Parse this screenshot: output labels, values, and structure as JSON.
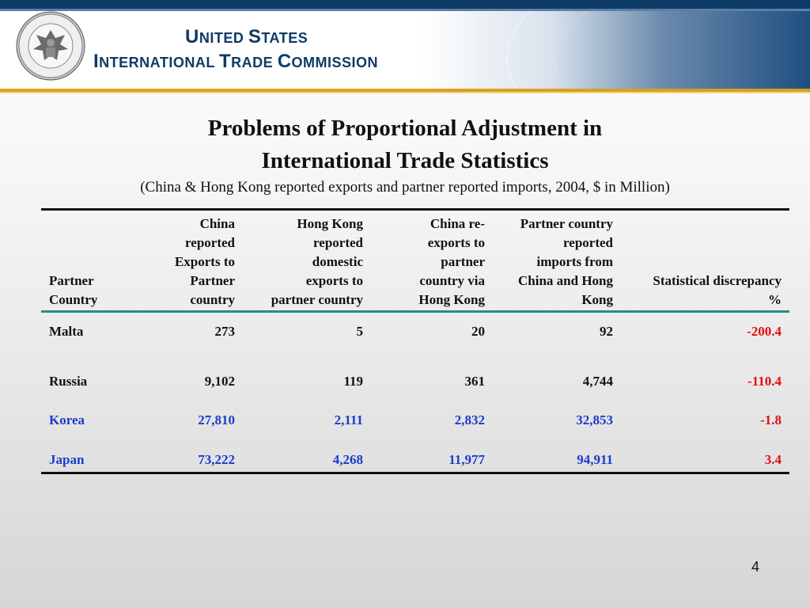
{
  "header": {
    "org_line1_prefix": "U",
    "org_line1_rest": "NITED ",
    "org_line1_prefix2": "S",
    "org_line1_rest2": "TATES",
    "org_line2_a": "I",
    "org_line2_b": "NTERNATIONAL ",
    "org_line2_c": "T",
    "org_line2_d": "RADE ",
    "org_line2_e": "C",
    "org_line2_f": "OMMISSION",
    "seal_text": "UNITED STATES INTERNATIONAL TRADE COMMISSION",
    "colors": {
      "navy": "#0f3a66",
      "gold": "#d8a11e"
    }
  },
  "slide": {
    "title_line1": "Problems of Proportional Adjustment in",
    "title_line2": "International Trade Statistics",
    "subtitle": "(China & Hong Kong reported exports and partner reported imports, 2004, $ in Million)",
    "page_number": "4"
  },
  "table": {
    "headers": [
      [
        "Partner",
        "Country"
      ],
      [
        "China",
        "reported",
        "Exports to",
        "Partner",
        "country"
      ],
      [
        "Hong Kong",
        "reported",
        "domestic",
        "exports to",
        "partner country"
      ],
      [
        "China re-",
        "exports to",
        "partner",
        "country via",
        "Hong Kong"
      ],
      [
        "Partner country",
        "reported",
        "imports from",
        "China and Hong",
        "Kong"
      ],
      [
        "Statistical discrepancy",
        "%"
      ]
    ],
    "rows": [
      {
        "country": "Malta",
        "china": "273",
        "hk": "5",
        "reexp": "20",
        "partner": "92",
        "disc": "-200.4"
      },
      {
        "country": "Russia",
        "china": "9,102",
        "hk": "119",
        "reexp": "361",
        "partner": "4,744",
        "disc": "-110.4"
      },
      {
        "country": "Korea",
        "china": "27,810",
        "hk": "2,111",
        "reexp": "2,832",
        "partner": "32,853",
        "disc": "-1.8"
      },
      {
        "country": "Japan",
        "china": "73,222",
        "hk": "4,268",
        "reexp": "11,977",
        "partner": "94,911",
        "disc": "3.4"
      }
    ],
    "colors": {
      "blue": "#1a3ccc",
      "red": "#e01010",
      "teal": "#2e8a8a"
    }
  }
}
